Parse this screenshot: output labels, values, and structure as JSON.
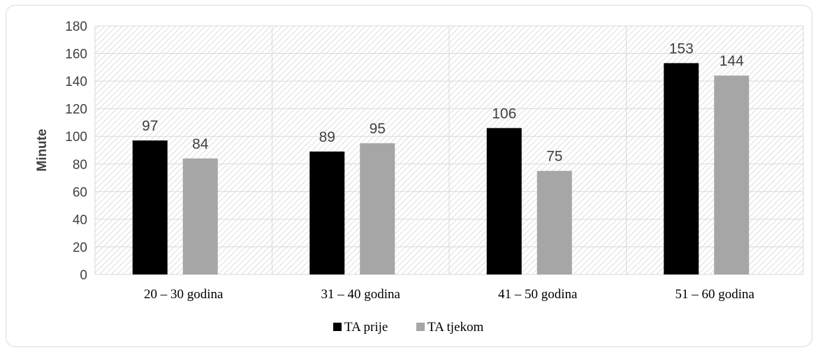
{
  "chart_data": {
    "type": "bar",
    "categories": [
      "20 – 30 godina",
      "31 – 40 godina",
      "41 – 50 godina",
      "51 – 60 godina"
    ],
    "series": [
      {
        "name": "TA prije",
        "values": [
          97,
          89,
          106,
          153
        ],
        "color": "#000000"
      },
      {
        "name": "TA tjekom",
        "values": [
          84,
          95,
          75,
          144
        ],
        "color": "#a6a6a6"
      }
    ],
    "title": "",
    "xlabel": "",
    "ylabel": "Minute",
    "ylim": [
      0,
      180
    ],
    "yticks": [
      "0",
      "20",
      "40",
      "60",
      "80",
      "100",
      "120",
      "140",
      "160",
      "180"
    ],
    "grid": true,
    "legend": "bottom"
  }
}
